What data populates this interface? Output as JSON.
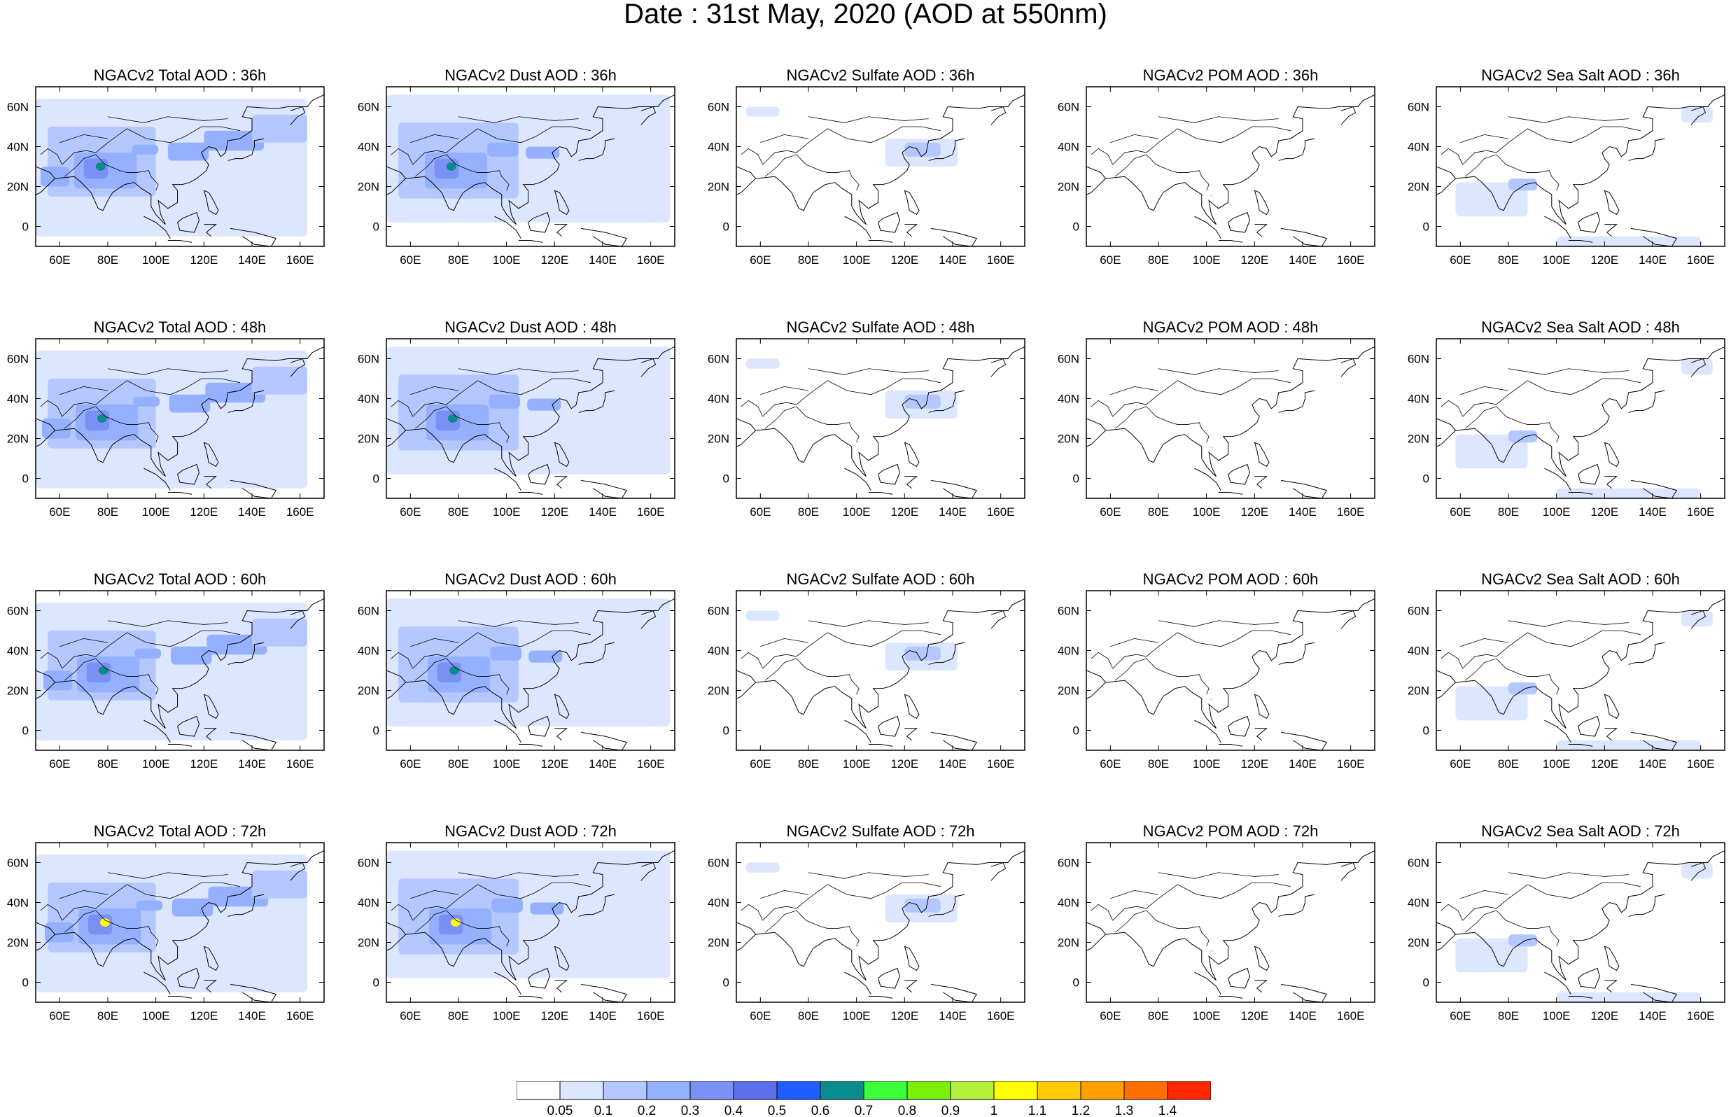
{
  "title": "Date : 31st May, 2020 (AOD at 550nm)",
  "panels": [
    [
      "NGACv2 Total AOD : 36h",
      "NGACv2 Dust AOD : 36h",
      "NGACv2 Sulfate AOD : 36h",
      "NGACv2 POM AOD : 36h",
      "NGACv2 Sea Salt AOD : 36h"
    ],
    [
      "NGACv2 Total AOD : 48h",
      "NGACv2 Dust AOD : 48h",
      "NGACv2 Sulfate AOD : 48h",
      "NGACv2 POM AOD : 48h",
      "NGACv2 Sea Salt AOD : 48h"
    ],
    [
      "NGACv2 Total AOD : 60h",
      "NGACv2 Dust AOD : 60h",
      "NGACv2 Sulfate AOD : 60h",
      "NGACv2 POM AOD : 60h",
      "NGACv2 Sea Salt AOD : 60h"
    ],
    [
      "NGACv2 Total AOD : 72h",
      "NGACv2 Dust AOD : 72h",
      "NGACv2 Sulfate AOD : 72h",
      "NGACv2 POM AOD : 72h",
      "NGACv2 Sea Salt  AOD : 72h"
    ]
  ],
  "map": {
    "lon_range": [
      50,
      170
    ],
    "lat_range": [
      -10,
      70
    ],
    "x_tick_labels": [
      "60E",
      "80E",
      "100E",
      "120E",
      "140E",
      "160E"
    ],
    "y_tick_labels": [
      "60N",
      "40N",
      "20N",
      "0"
    ]
  },
  "colorbar": {
    "labels": [
      "0.05",
      "0.1",
      "0.2",
      "0.3",
      "0.4",
      "0.5",
      "0.6",
      "0.7",
      "0.8",
      "0.9",
      "1",
      "1.1",
      "1.2",
      "1.3",
      "1.4"
    ],
    "colors": [
      "#ffffff",
      "#dce6ff",
      "#b4c8ff",
      "#94b0ff",
      "#7b90f5",
      "#5e70ec",
      "#1e5eff",
      "#0a8c8c",
      "#3cff3c",
      "#78f00a",
      "#b4f03c",
      "#ffff00",
      "#ffc800",
      "#ffa000",
      "#ff6e00",
      "#ff2800"
    ]
  }
}
